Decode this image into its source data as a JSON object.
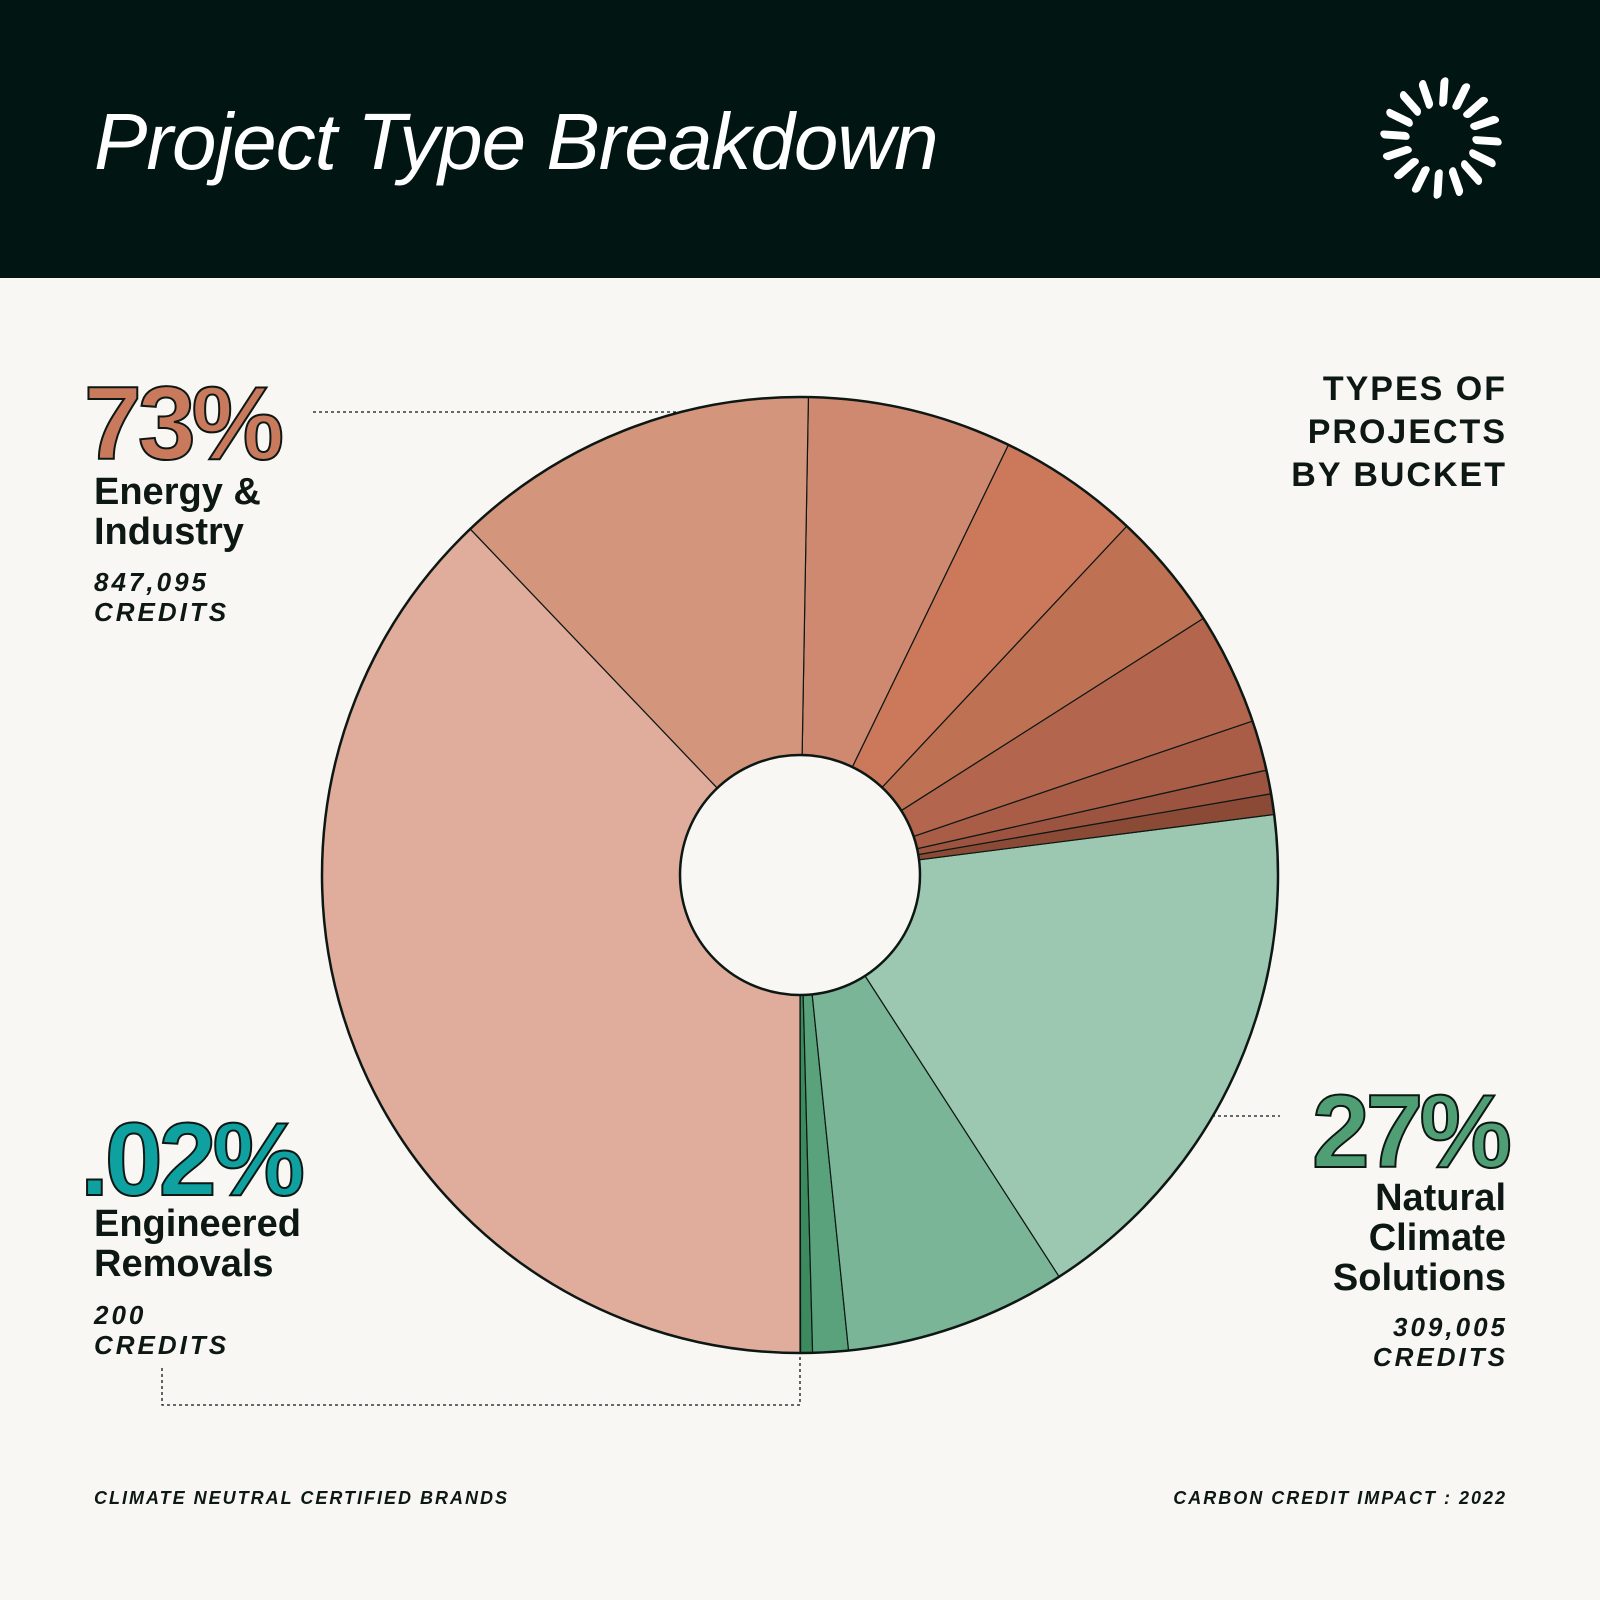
{
  "header": {
    "title": "Project Type Breakdown"
  },
  "side_title": {
    "lines": [
      "TYPES OF",
      "PROJECTS",
      "BY BUCKET"
    ]
  },
  "buckets": {
    "energy": {
      "pct": "73%",
      "label_lines": [
        "Energy &",
        "Industry"
      ],
      "credits_lines": [
        "847,095",
        "CREDITS"
      ],
      "color": "#c97a5c"
    },
    "engineered": {
      "pct": ".02%",
      "label_lines": [
        "Engineered",
        "Removals"
      ],
      "credits_lines": [
        "200",
        "CREDITS"
      ],
      "color": "#0fa0a0"
    },
    "natural": {
      "pct": "27%",
      "label_lines": [
        "Natural",
        "Climate",
        "Solutions"
      ],
      "credits_lines": [
        "309,005",
        "CREDITS"
      ],
      "color": "#4f9e74"
    }
  },
  "footer": {
    "left": "CLIMATE NEUTRAL CERTIFIED BRANDS",
    "right": "CARBON CREDIT IMPACT : 2022"
  },
  "chart_data": {
    "type": "pie",
    "start": "bottom, counter-clockwise",
    "values_unit": "percent of total credits",
    "segments": [
      {
        "bucket": "Engineered Removals",
        "value": 0.02,
        "color": "#3d8a5f"
      },
      {
        "bucket": "Natural Climate Solutions",
        "value": 0.4,
        "color": "#3d8a5f"
      },
      {
        "bucket": "Natural Climate Solutions",
        "value": 1.2,
        "color": "#5aa27c"
      },
      {
        "bucket": "Natural Climate Solutions",
        "value": 7.5,
        "color": "#7bb597"
      },
      {
        "bucket": "Natural Climate Solutions",
        "value": 17.9,
        "color": "#9cc8b2"
      },
      {
        "bucket": "Energy & Industry",
        "value": 0.7,
        "color": "#8a4a35"
      },
      {
        "bucket": "Energy & Industry",
        "value": 0.8,
        "color": "#9c5440"
      },
      {
        "bucket": "Energy & Industry",
        "value": 1.7,
        "color": "#a95d47"
      },
      {
        "bucket": "Energy & Industry",
        "value": 3.8,
        "color": "#b3664d"
      },
      {
        "bucket": "Energy & Industry",
        "value": 4.0,
        "color": "#bf7153"
      },
      {
        "bucket": "Energy & Industry",
        "value": 4.8,
        "color": "#cc785a"
      },
      {
        "bucket": "Energy & Industry",
        "value": 6.9,
        "color": "#d08971"
      },
      {
        "bucket": "Energy & Industry",
        "value": 12.4,
        "color": "#d4957d"
      },
      {
        "bucket": "Energy & Industry",
        "value": 37.88,
        "color": "#e0ad9d"
      }
    ]
  }
}
